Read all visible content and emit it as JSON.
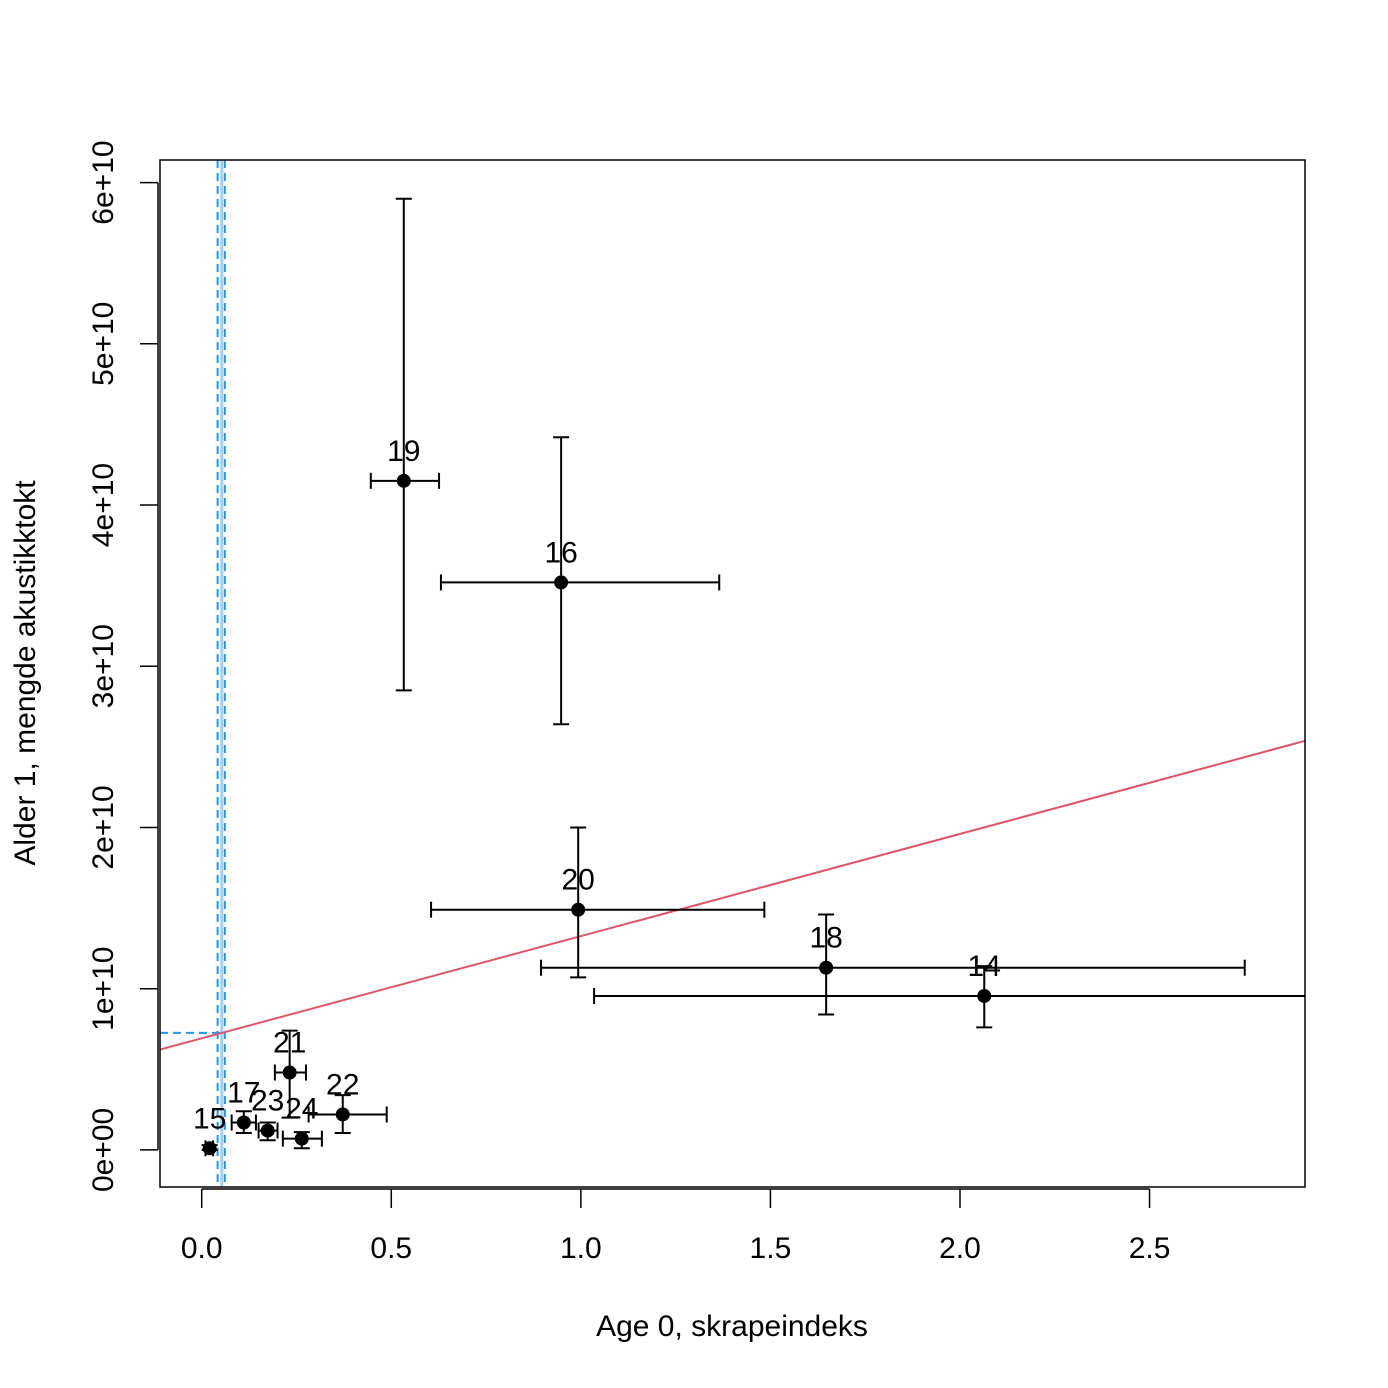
{
  "chart_data": {
    "type": "scatter",
    "title": "",
    "xlabel": "Age 0, skrapeindeks",
    "ylabel": "Alder 1, mengde akustikktokt",
    "xlim": [
      -0.11,
      2.91
    ],
    "ylim": [
      -2300000000.0,
      61400000000.0
    ],
    "x_ticks": [
      0.0,
      0.5,
      1.0,
      1.5,
      2.0,
      2.5
    ],
    "x_tick_labels": [
      "0.0",
      "0.5",
      "1.0",
      "1.5",
      "2.0",
      "2.5"
    ],
    "y_ticks": [
      0,
      10000000000.0,
      20000000000.0,
      30000000000.0,
      40000000000.0,
      50000000000.0,
      60000000000.0
    ],
    "y_tick_labels": [
      "0e+00",
      "1e+10",
      "2e+10",
      "3e+10",
      "4e+10",
      "5e+10",
      "6e+10"
    ],
    "grid": false,
    "points": [
      {
        "label": "15",
        "x": 0.021,
        "y": 100000000.0,
        "xlo": 0.01,
        "xhi": 0.03,
        "ylo": 0.0,
        "yhi": 300000000.0
      },
      {
        "label": "17",
        "x": 0.111,
        "y": 1700000000.0,
        "xlo": 0.079,
        "xhi": 0.143,
        "ylo": 1050000000.0,
        "yhi": 2400000000.0
      },
      {
        "label": "23",
        "x": 0.174,
        "y": 1200000000.0,
        "xlo": 0.15,
        "xhi": 0.2,
        "ylo": 600000000.0,
        "yhi": 1700000000.0
      },
      {
        "label": "24",
        "x": 0.264,
        "y": 700000000.0,
        "xlo": 0.214,
        "xhi": 0.317,
        "ylo": 100000000.0,
        "yhi": 1100000000.0
      },
      {
        "label": "21",
        "x": 0.232,
        "y": 4800000000.0,
        "xlo": 0.193,
        "xhi": 0.275,
        "ylo": 2000000000.0,
        "yhi": 7400000000.0
      },
      {
        "label": "22",
        "x": 0.372,
        "y": 2200000000.0,
        "xlo": 0.282,
        "xhi": 0.488,
        "ylo": 1050000000.0,
        "yhi": 3400000000.0
      },
      {
        "label": "19",
        "x": 0.533,
        "y": 41500000000.0,
        "xlo": 0.446,
        "xhi": 0.626,
        "ylo": 28500000000.0,
        "yhi": 59000000000.0
      },
      {
        "label": "16",
        "x": 0.948,
        "y": 35200000000.0,
        "xlo": 0.631,
        "xhi": 1.365,
        "ylo": 26400000000.0,
        "yhi": 44200000000.0
      },
      {
        "label": "20",
        "x": 0.993,
        "y": 14900000000.0,
        "xlo": 0.605,
        "xhi": 1.484,
        "ylo": 10700000000.0,
        "yhi": 20000000000.0
      },
      {
        "label": "18",
        "x": 1.647,
        "y": 11300000000.0,
        "xlo": 0.895,
        "xhi": 2.751,
        "ylo": 8400000000.0,
        "yhi": 14600000000.0
      },
      {
        "label": "14",
        "x": 2.064,
        "y": 9550000000.0,
        "xlo": 1.035,
        "xhi": 3.1,
        "ylo": 7600000000.0,
        "yhi": 11400000000.0
      }
    ],
    "regression_line": {
      "intercept": 6920000000.0,
      "slope": 6340000000.0,
      "color": "#DF536B"
    },
    "vertical_line": {
      "x": 0.053,
      "x_lo": 0.042,
      "x_hi": 0.061,
      "color": "#2297E6"
    },
    "horizontal_reference": {
      "y": 7260000000.0,
      "color": "#2297E6"
    }
  }
}
